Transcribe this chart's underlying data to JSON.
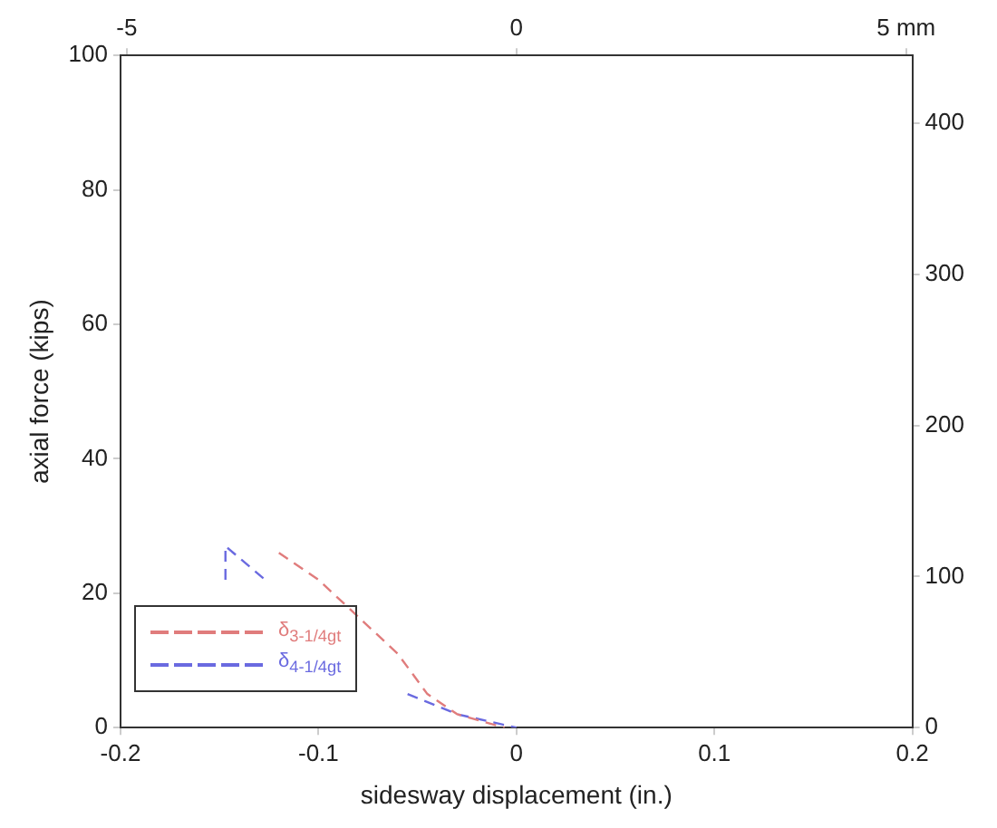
{
  "chart_data": {
    "type": "line",
    "xlabel": "sidesway displacement (in.)",
    "ylabel": "axial force (kips)",
    "xlim": [
      -0.2,
      0.2
    ],
    "xticks": [
      -0.2,
      -0.1,
      0,
      0.1,
      0.2
    ],
    "ylim": [
      0,
      100
    ],
    "yticks": [
      0,
      20,
      40,
      60,
      80,
      100
    ],
    "x2lim": [
      -5.08,
      5.08
    ],
    "x2ticks": [
      -5,
      0,
      {
        "value": 5,
        "label": "5 mm"
      }
    ],
    "y2lim": [
      0,
      444.8
    ],
    "y2ticks": [
      0,
      100,
      200,
      300,
      400
    ],
    "grid": false,
    "legend": "bottom left",
    "marker": "none",
    "line_style": "dashed",
    "series": [
      {
        "name": "δ$_{3-1/4gt}$",
        "color": "#e07c7c",
        "x": [
          -0.12,
          -0.1,
          -0.06,
          -0.045,
          -0.03,
          -0.006
        ],
        "values": [
          26,
          22,
          11,
          5,
          2,
          0
        ]
      },
      {
        "name": "δ$_{4-1/4gt}$",
        "color": "#6a6ae0",
        "x": [
          -0.147,
          -0.147,
          -0.127,
          -0.11,
          -0.07,
          -0.055,
          -0.03,
          0
        ],
        "values": [
          22,
          27,
          22,
          null,
          null,
          5,
          2,
          0
        ]
      }
    ]
  }
}
